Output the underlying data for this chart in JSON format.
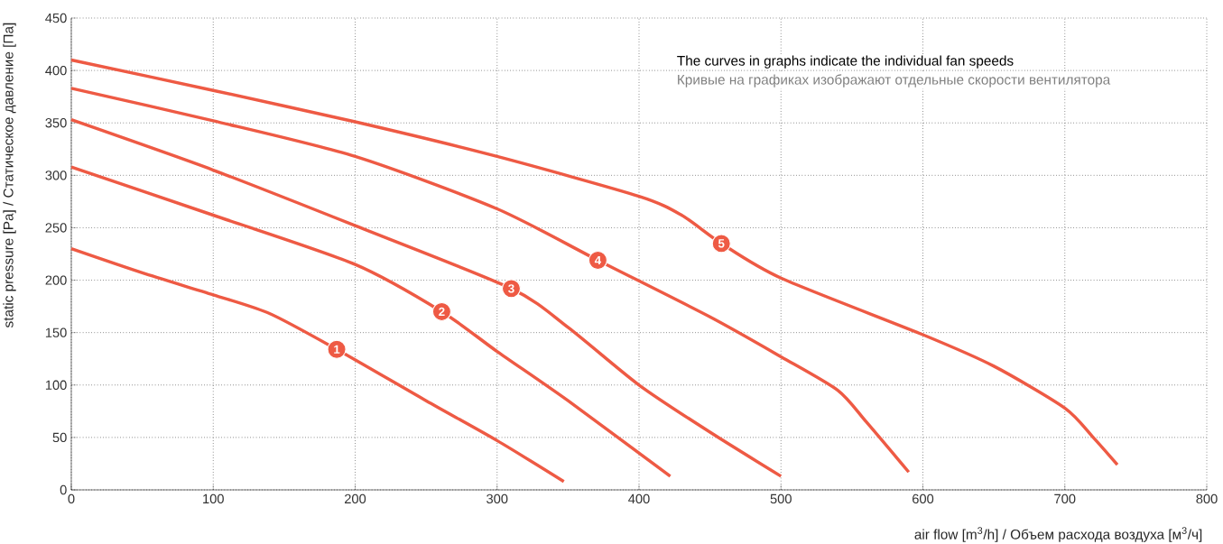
{
  "chart_data": {
    "type": "line",
    "xlabel": "air flow [m$^{3}$/h] / Объем расхода воздуха [м$^{3}$/ч]",
    "ylabel": "static pressure [Pa] / Статическое давление [Па]",
    "annotations": [
      "The curves in graphs indicate the individual fan speeds",
      "Кривые на графиках изображают отдельные скорости вентилятора",
      {
        "text": "1",
        "x": 187,
        "y": 134
      },
      {
        "text": "2",
        "x": 261,
        "y": 170
      },
      {
        "text": "3",
        "x": 310,
        "y": 192
      },
      {
        "text": "4",
        "x": 371,
        "y": 219
      },
      {
        "text": "5",
        "x": 458,
        "y": 235
      }
    ],
    "series": [
      {
        "color": "#ee5a44",
        "x": [
          0,
          50,
          100,
          140,
          187,
          250,
          300,
          347
        ],
        "values": [
          230,
          207,
          186,
          168,
          134,
          85,
          47,
          8
        ]
      },
      {
        "color": "#ee5a44",
        "x": [
          0,
          100,
          200,
          261,
          300,
          350,
          422
        ],
        "values": [
          308,
          262,
          215,
          170,
          132,
          85,
          13
        ]
      },
      {
        "color": "#ee5a44",
        "x": [
          0,
          100,
          200,
          310,
          350,
          400,
          450,
          500
        ],
        "values": [
          353,
          305,
          252,
          192,
          155,
          100,
          55,
          13
        ]
      },
      {
        "color": "#ee5a44",
        "x": [
          0,
          100,
          200,
          300,
          371,
          450,
          500,
          540,
          560,
          590
        ],
        "values": [
          383,
          352,
          318,
          268,
          219,
          165,
          127,
          95,
          65,
          17
        ]
      },
      {
        "color": "#ee5a44",
        "x": [
          0,
          100,
          200,
          300,
          400,
          430,
          458,
          500,
          600,
          650,
          700,
          720,
          737
        ],
        "values": [
          410,
          381,
          351,
          318,
          280,
          262,
          235,
          202,
          148,
          118,
          78,
          50,
          24
        ]
      }
    ],
    "xlim": [
      0,
      800
    ],
    "ylim": [
      0,
      450
    ],
    "xticks": [
      0,
      100,
      200,
      300,
      400,
      500,
      600,
      700,
      800
    ],
    "yticks": [
      0,
      50,
      100,
      150,
      200,
      250,
      300,
      350,
      400,
      450
    ],
    "grid": true,
    "marker": "none",
    "line_style": "solid"
  }
}
